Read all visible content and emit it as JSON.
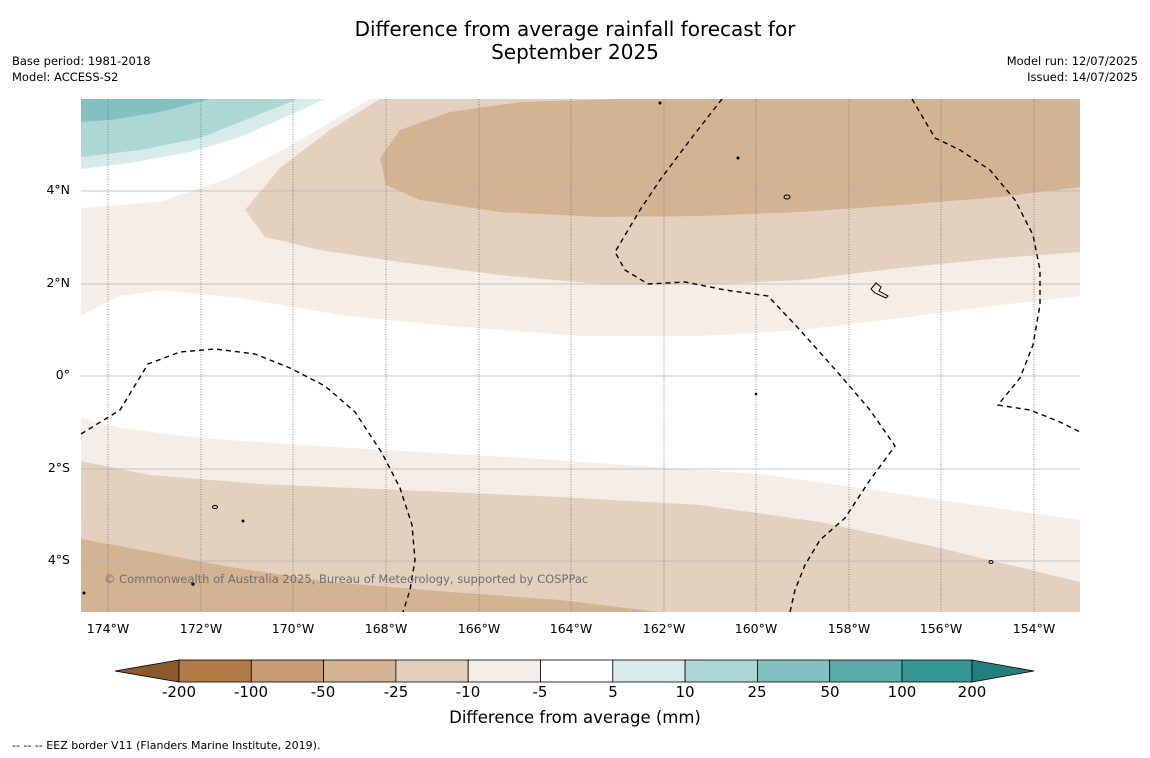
{
  "title_line1": "Difference from average rainfall forecast for",
  "title_line2": "September 2025",
  "base_period": "Base period: 1981-2018",
  "model": "Model: ACCESS-S2",
  "model_run": "Model run: 12/07/2025",
  "issued": "Issued: 14/07/2025",
  "credit": "© Commonwealth of Australia 2025, Bureau of Meteorology, supported by COSPPac",
  "lat_labels": [
    "4°N",
    "2°N",
    "0°",
    "2°S",
    "4°S"
  ],
  "lon_labels": [
    "174°W",
    "172°W",
    "170°W",
    "168°W",
    "166°W",
    "164°W",
    "162°W",
    "160°W",
    "158°W",
    "156°W",
    "154°W"
  ],
  "colorbar": {
    "title": "Difference from average (mm)",
    "ticks": [
      "-200",
      "-100",
      "-50",
      "-25",
      "-10",
      "-5",
      "5",
      "10",
      "25",
      "50",
      "100",
      "200"
    ],
    "colors": [
      "#8a5a2a",
      "#b07b46",
      "#c79b74",
      "#d4b393",
      "#e3d0be",
      "#f5ede8",
      "#ffffff",
      "#d7ebe9",
      "#acd7d5",
      "#82c1bf",
      "#5aadaa",
      "#359896",
      "#237f7d"
    ]
  },
  "footnote": "--  --  -- EEZ border V11 (Flanders Marine Institute, 2019)."
}
